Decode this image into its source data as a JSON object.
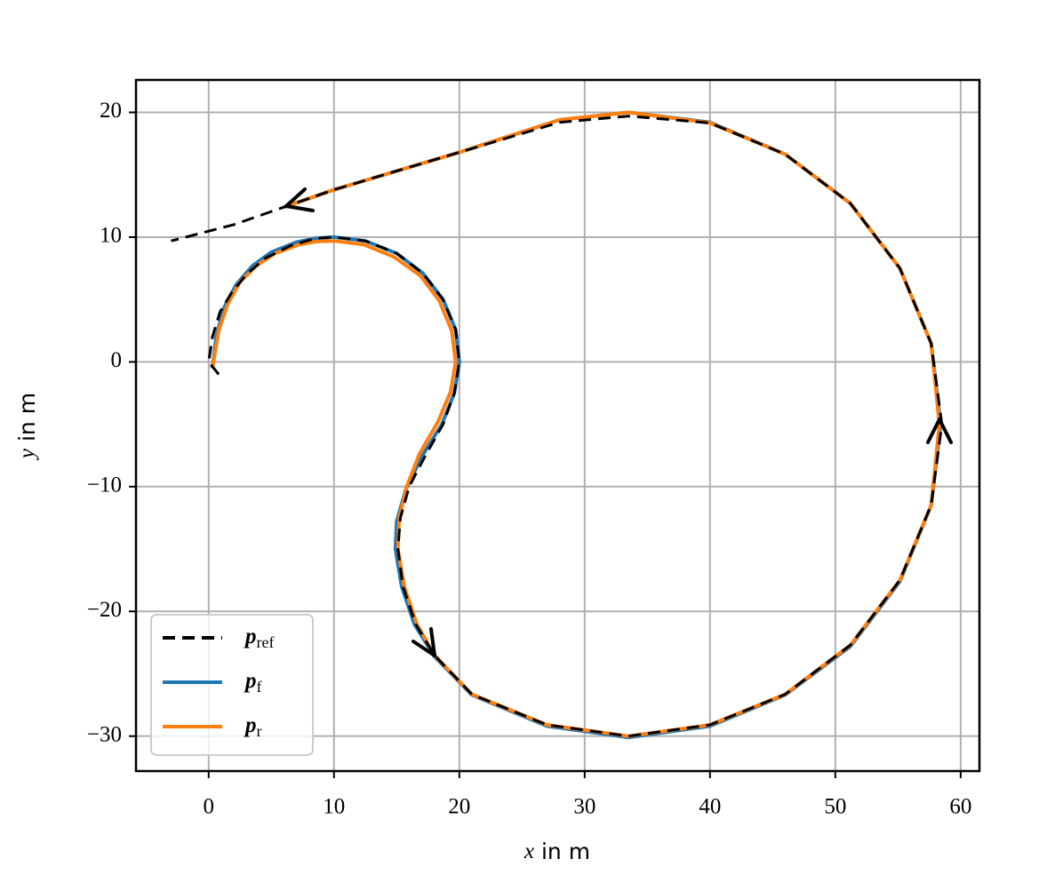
{
  "chart_data": {
    "type": "line",
    "x_label": {
      "var": "x",
      "text": " in m"
    },
    "y_label": {
      "var": "y",
      "text": " in m"
    },
    "xlim": [
      -5.8,
      61.5
    ],
    "ylim": [
      -32.8,
      22.6
    ],
    "xticks": [
      0,
      10,
      20,
      30,
      40,
      50,
      60
    ],
    "yticks": [
      {
        "value": -30,
        "label": "−30"
      },
      {
        "value": -20,
        "label": "−20"
      },
      {
        "value": -10,
        "label": "−10"
      },
      0,
      10,
      20
    ],
    "grid": true,
    "legend": "lower left",
    "series": [
      {
        "name": "p",
        "subscript": "ref",
        "color": "#000000",
        "dash": true,
        "x": [
          0.8,
          0,
          0.3,
          0.9,
          1.8,
          3,
          4.5,
          6.5,
          8.5,
          10,
          12.5,
          15,
          17.1,
          18.7,
          19.7,
          20,
          19.6,
          18.7,
          17.3,
          16,
          15.3,
          15.1,
          15.5,
          16.5,
          18,
          21,
          27,
          33.5,
          40,
          46,
          51.2,
          55.15,
          57.65,
          58.5,
          57.65,
          55.15,
          51.2,
          46,
          40,
          33.5,
          28,
          24,
          20,
          15,
          10,
          6,
          2,
          -3
        ],
        "values": [
          -1,
          0,
          2,
          4,
          5.5,
          7,
          8.3,
          9.3,
          9.9,
          10,
          9.7,
          8.7,
          7.1,
          5,
          2.6,
          0,
          -2.5,
          -5,
          -7.5,
          -10,
          -12.5,
          -15,
          -18,
          -21,
          -23.5,
          -26.65,
          -29.1,
          -30,
          -29.1,
          -26.65,
          -22.7,
          -17.5,
          -11.47,
          -5,
          1.47,
          7.5,
          12.7,
          16.65,
          19.15,
          19.7,
          19.2,
          18,
          16.8,
          15.3,
          13.8,
          12.4,
          11,
          9.7
        ]
      },
      {
        "name": "p",
        "subscript": "f",
        "color": "#1f77b4",
        "dash": false,
        "x": [
          0.3,
          0.6,
          1.2,
          2.2,
          3.5,
          5,
          7,
          8.5,
          10,
          12.5,
          15,
          17.1,
          18.7,
          19.7,
          20,
          19.6,
          18.6,
          17,
          15.7,
          15,
          14.9,
          15.4,
          16.4,
          18,
          21,
          27,
          33.5,
          40,
          46,
          51.2,
          55.15,
          57.65,
          58.4,
          57.65,
          55.15,
          51.2,
          46,
          40,
          33.5,
          28,
          24,
          20,
          15,
          10,
          6
        ],
        "values": [
          -0.5,
          2,
          4.3,
          6.2,
          7.7,
          8.8,
          9.6,
          9.9,
          10,
          9.7,
          8.7,
          7.1,
          5,
          2.6,
          0,
          -2.5,
          -5,
          -7.6,
          -10.3,
          -12.8,
          -15,
          -18,
          -21,
          -23.6,
          -26.7,
          -29.2,
          -30.1,
          -29.2,
          -26.7,
          -22.8,
          -17.6,
          -11.5,
          -5,
          1.47,
          7.5,
          12.7,
          16.65,
          19.2,
          20,
          19.4,
          18.1,
          16.8,
          15.3,
          13.8,
          12.4
        ]
      },
      {
        "name": "p",
        "subscript": "r",
        "color": "#ff7f0e",
        "dash": false,
        "x": [
          0.3,
          0.8,
          1.5,
          2.5,
          3.8,
          5.3,
          7.2,
          8.6,
          10,
          12.4,
          14.8,
          16.9,
          18.4,
          19.4,
          19.7,
          19.3,
          18.3,
          16.8,
          15.8,
          15.2,
          15.1,
          15.6,
          16.6,
          18,
          21,
          27,
          33.5,
          40,
          46,
          51.2,
          55.15,
          57.65,
          58.3,
          57.65,
          55.15,
          51.2,
          46,
          40,
          33.5,
          28,
          24,
          20,
          15,
          10,
          6
        ],
        "values": [
          -0.5,
          2.5,
          4.6,
          6.4,
          7.7,
          8.7,
          9.4,
          9.65,
          9.7,
          9.4,
          8.4,
          6.9,
          4.9,
          2.5,
          0,
          -2.4,
          -4.8,
          -7.4,
          -10,
          -12.5,
          -15,
          -18,
          -21,
          -23.5,
          -26.65,
          -29.1,
          -30,
          -29.1,
          -26.65,
          -22.7,
          -17.5,
          -11.47,
          -5,
          1.47,
          7.5,
          12.7,
          16.65,
          19.15,
          20,
          19.4,
          18.1,
          16.8,
          15.3,
          13.8,
          12.4
        ]
      }
    ]
  }
}
